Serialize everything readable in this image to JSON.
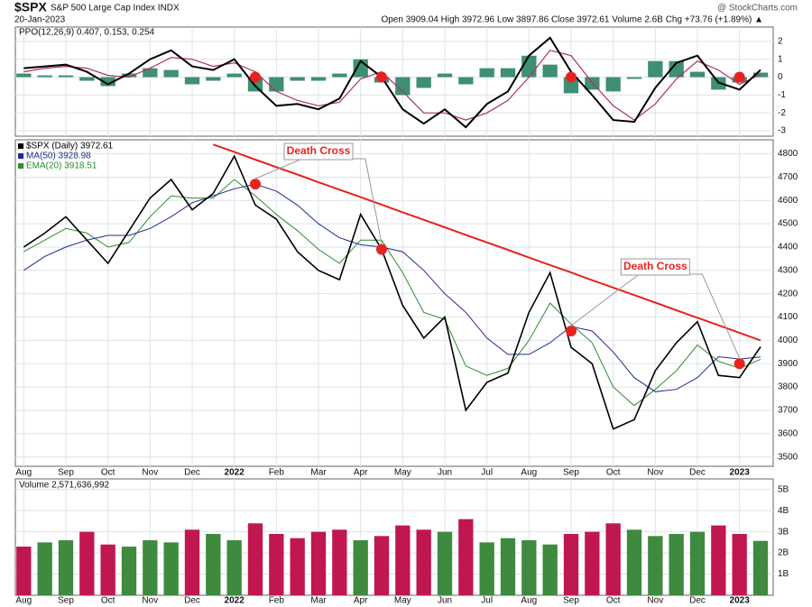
{
  "chart_data": {
    "type": "stock",
    "symbol": "$SPX",
    "name": "S&P 500 Large Cap Index INDX",
    "date": "20-Jan-2023",
    "quote": "Open 3909.04  High 3972.96  Low 3897.86  Close 3972.61  Volume 2.6B  Chg +73.76 (+1.89%) ▲",
    "credit": "@ StockCharts.com",
    "categories": [
      "Aug",
      null,
      "Sep",
      null,
      "Oct",
      null,
      "Nov",
      null,
      "Dec",
      null,
      "2022",
      null,
      "Feb",
      null,
      "Mar",
      null,
      "Apr",
      null,
      "May",
      null,
      "Jun",
      null,
      "Jul",
      null,
      "Aug",
      null,
      "Sep",
      null,
      "Oct",
      null,
      "Nov",
      null,
      "Dec",
      null,
      "2023",
      null
    ],
    "price": {
      "ylim": [
        3460,
        4860
      ],
      "yticks": [
        3500,
        3600,
        3700,
        3800,
        3900,
        4000,
        4100,
        4200,
        4300,
        4400,
        4500,
        4600,
        4700,
        4800
      ],
      "series": [
        {
          "name": "$SPX (Daily) 3972.61",
          "color": "#000000",
          "values": [
            4400,
            4460,
            4530,
            4430,
            4330,
            4470,
            4610,
            4690,
            4560,
            4630,
            4790,
            4580,
            4520,
            4380,
            4300,
            4260,
            4540,
            4390,
            4150,
            4010,
            4100,
            3700,
            3820,
            3860,
            4120,
            4290,
            3970,
            3900,
            3620,
            3660,
            3870,
            3990,
            4080,
            3850,
            3840,
            3972.61
          ]
        },
        {
          "name": "MA(50) 3928.98",
          "color": "#1f2b8c",
          "values": [
            4300,
            4360,
            4400,
            4430,
            4450,
            4450,
            4480,
            4530,
            4590,
            4620,
            4650,
            4670,
            4640,
            4580,
            4500,
            4440,
            4410,
            4400,
            4380,
            4300,
            4200,
            4120,
            4010,
            3940,
            3940,
            3990,
            4060,
            4040,
            3950,
            3840,
            3780,
            3790,
            3840,
            3930,
            3920,
            3928.98
          ]
        },
        {
          "name": "EMA(20) 3918.51",
          "color": "#2e8b2e",
          "values": [
            4380,
            4430,
            4480,
            4460,
            4400,
            4420,
            4530,
            4620,
            4610,
            4610,
            4690,
            4620,
            4540,
            4470,
            4390,
            4330,
            4430,
            4430,
            4290,
            4120,
            4090,
            3890,
            3850,
            3880,
            4000,
            4160,
            4070,
            3990,
            3800,
            3720,
            3790,
            3870,
            3980,
            3910,
            3880,
            3918.51
          ]
        }
      ],
      "trendline": {
        "color": "#e8231f",
        "values": [
          null,
          null,
          null,
          null,
          null,
          null,
          null,
          null,
          null,
          4840,
          4808,
          4775,
          4743,
          4711,
          4678,
          4646,
          4614,
          4582,
          4549,
          4517,
          4485,
          4452,
          4420,
          4388,
          4355,
          4323,
          4291,
          4258,
          4226,
          4194,
          4162,
          4129,
          4097,
          4065,
          4032,
          4000
        ]
      },
      "markers": {
        "color": "#e8231f",
        "values": [
          null,
          null,
          null,
          null,
          null,
          null,
          null,
          null,
          null,
          null,
          null,
          4670,
          null,
          null,
          null,
          null,
          null,
          4390,
          null,
          null,
          null,
          null,
          null,
          null,
          null,
          null,
          4040,
          null,
          null,
          null,
          null,
          null,
          null,
          null,
          3900,
          null
        ]
      },
      "annotations": [
        "Death Cross",
        "Death Cross"
      ]
    },
    "ppo": {
      "title": "PPO(12,26,9) 0.407, 0.153, 0.254",
      "ylim": [
        -3.3,
        2.8
      ],
      "yticks": [
        -3,
        -2,
        -1,
        0,
        1,
        2
      ],
      "line": {
        "color": "#000000",
        "values": [
          0.5,
          0.6,
          0.7,
          0.3,
          -0.4,
          0.2,
          1.0,
          1.5,
          0.6,
          0.4,
          1.0,
          -0.5,
          -1.6,
          -1.5,
          -1.8,
          -1.2,
          0.9,
          0.0,
          -1.8,
          -2.6,
          -1.8,
          -2.8,
          -1.5,
          -0.8,
          1.2,
          2.2,
          0.3,
          -1.0,
          -2.4,
          -2.5,
          -0.6,
          0.8,
          1.2,
          -0.3,
          -0.7,
          0.407
        ]
      },
      "signal": {
        "color": "#b03060",
        "values": [
          0.3,
          0.5,
          0.6,
          0.5,
          0.1,
          0.0,
          0.5,
          1.1,
          1.0,
          0.6,
          0.8,
          0.3,
          -0.8,
          -1.3,
          -1.6,
          -1.4,
          -0.1,
          0.3,
          -0.8,
          -2.0,
          -2.0,
          -2.4,
          -2.0,
          -1.3,
          0.0,
          1.5,
          1.2,
          -0.3,
          -1.6,
          -2.4,
          -1.5,
          -0.1,
          0.9,
          0.4,
          -0.4,
          0.153
        ]
      },
      "histogram": {
        "color": "#3e8f73",
        "values": [
          0.2,
          0.1,
          0.1,
          -0.2,
          -0.5,
          0.2,
          0.5,
          0.4,
          -0.4,
          -0.2,
          0.2,
          -0.8,
          -0.8,
          -0.2,
          -0.2,
          0.2,
          1.0,
          -0.3,
          -1.0,
          -0.6,
          0.2,
          -0.4,
          0.5,
          0.5,
          1.2,
          0.7,
          -0.9,
          -0.7,
          -0.8,
          -0.1,
          0.9,
          0.9,
          0.3,
          -0.7,
          -0.3,
          0.254
        ]
      },
      "markers": {
        "color": "#e8231f",
        "values": [
          null,
          null,
          null,
          null,
          null,
          null,
          null,
          null,
          null,
          null,
          null,
          0,
          null,
          null,
          null,
          null,
          null,
          0,
          null,
          null,
          null,
          null,
          null,
          null,
          null,
          null,
          0,
          null,
          null,
          null,
          null,
          null,
          null,
          null,
          0,
          null
        ]
      }
    },
    "volume": {
      "title": "Volume 2,571,636,992",
      "up_color": "#3e8a3e",
      "down_color": "#c0174f",
      "ylim": [
        0,
        5500000000
      ],
      "yticks": [
        {
          "value": 1000000000,
          "label": "1B"
        },
        {
          "value": 2000000000,
          "label": "2B"
        },
        {
          "value": 3000000000,
          "label": "3B"
        },
        {
          "value": 4000000000,
          "label": "4B"
        },
        {
          "value": 5000000000,
          "label": "5B"
        }
      ],
      "values": [
        2300000000,
        2500000000,
        2600000000,
        3000000000,
        2400000000,
        2300000000,
        2600000000,
        2500000000,
        3100000000,
        2900000000,
        2600000000,
        3400000000,
        2900000000,
        2700000000,
        3000000000,
        3100000000,
        2600000000,
        2800000000,
        3300000000,
        3100000000,
        3000000000,
        3600000000,
        2500000000,
        2700000000,
        2600000000,
        2400000000,
        2900000000,
        3000000000,
        3400000000,
        3100000000,
        2800000000,
        2900000000,
        3000000000,
        3300000000,
        2900000000,
        2571636992
      ]
    }
  }
}
